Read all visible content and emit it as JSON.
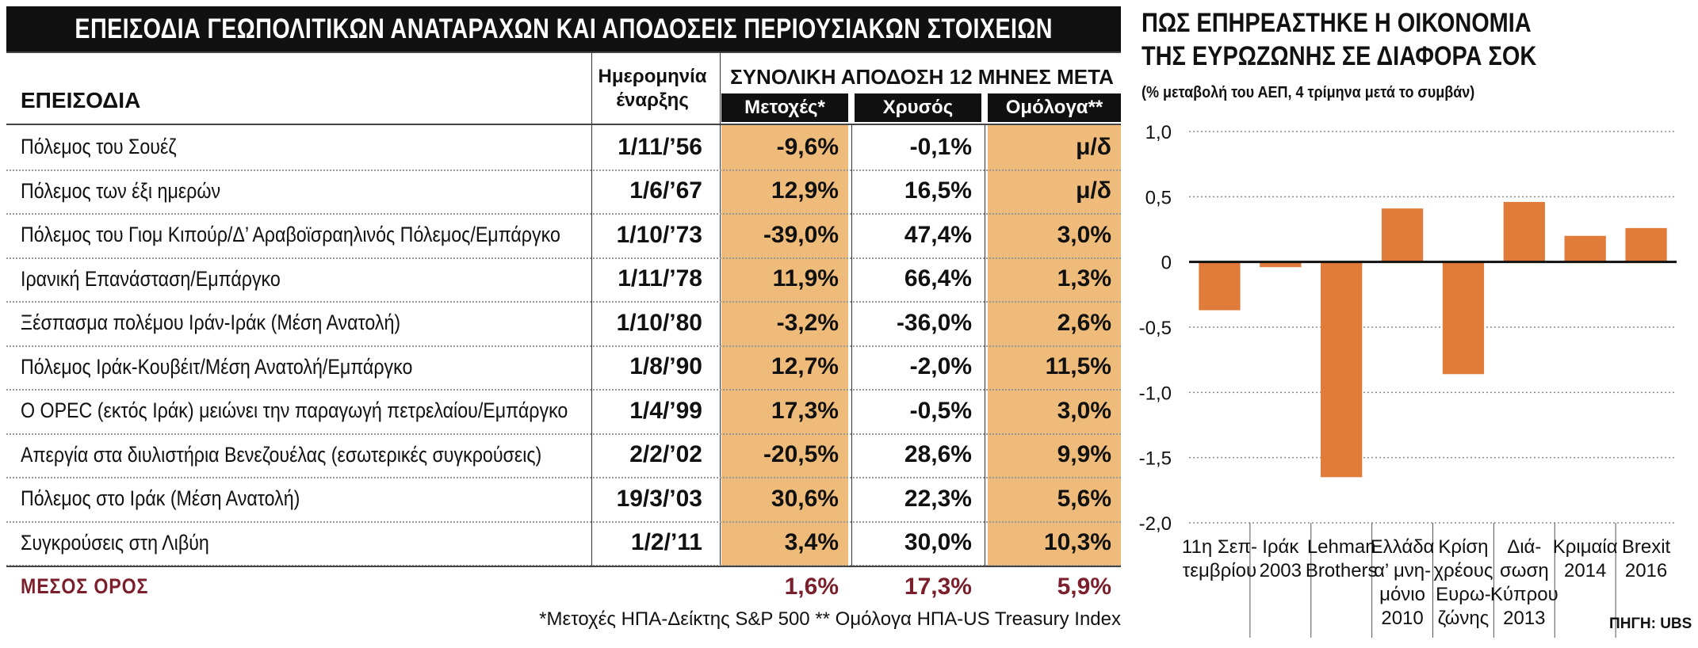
{
  "table": {
    "title": "ΕΠΕΙΣΟΔΙΑ ΓΕΩΠΟΛΙΤΙΚΩΝ ΑΝΑΤΑΡΑΧΩΝ ΚΑΙ ΑΠΟΔΟΣΕΙΣ ΠΕΡΙΟΥΣΙΑΚΩΝ ΣΤΟΙΧΕΙΩΝ",
    "header_episodes": "ΕΠΕΙΣΟΔΙΑ",
    "header_start_line1": "Ημερομηνία",
    "header_start_line2": "έναρξης",
    "header_returns": "ΣΥΝΟΛΙΚΗ ΑΠΟΔΟΣΗ 12 ΜΗΝΕΣ ΜΕΤΑ",
    "col_stocks": "Μετοχές*",
    "col_gold": "Χρυσός",
    "col_bonds": "Ομόλογα**",
    "rows": [
      {
        "episode": "Πόλεμος του Σουέζ",
        "date": "1/11/’56",
        "stocks": "-9,6%",
        "gold": "-0,1%",
        "bonds": "μ/δ"
      },
      {
        "episode": "Πόλεμος των έξι  ημερών",
        "date": "1/6/’67",
        "stocks": "12,9%",
        "gold": "16,5%",
        "bonds": "μ/δ"
      },
      {
        "episode": "Πόλεμος του Γιομ Κιπούρ/Δ’ Αραβοϊσραηλινός Πόλεμος/Εμπάργκο",
        "date": "1/10/’73",
        "stocks": "-39,0%",
        "gold": "47,4%",
        "bonds": "3,0%"
      },
      {
        "episode": "Ιρανική Επανάσταση/Εμπάργκο",
        "date": "1/11/’78",
        "stocks": "11,9%",
        "gold": "66,4%",
        "bonds": "1,3%"
      },
      {
        "episode": "Ξέσπασμα πολέμου Ιράν-Ιράκ (Μέση Ανατολή)",
        "date": "1/10/’80",
        "stocks": "-3,2%",
        "gold": "-36,0%",
        "bonds": "2,6%"
      },
      {
        "episode": "Πόλεμος Ιράκ-Κουβέιτ/Μέση Ανατολή/Εμπάργκο",
        "date": "1/8/’90",
        "stocks": "12,7%",
        "gold": "-2,0%",
        "bonds": "11,5%"
      },
      {
        "episode": "Ο OPEC (εκτός Ιράκ) μειώνει την παραγωγή πετρελαίου/Εμπάργκο",
        "date": "1/4/’99",
        "stocks": "17,3%",
        "gold": "-0,5%",
        "bonds": "3,0%"
      },
      {
        "episode": "Απεργία στα διυλιστήρια Βενεζουέλας (εσωτερικές συγκρούσεις)",
        "date": "2/2/’02",
        "stocks": "-20,5%",
        "gold": "28,6%",
        "bonds": "9,9%"
      },
      {
        "episode": "Πόλεμος στο Ιράκ (Μέση Ανατολή)",
        "date": "19/3/’03",
        "stocks": "30,6%",
        "gold": "22,3%",
        "bonds": "5,6%"
      },
      {
        "episode": "Συγκρούσεις στη Λιβύη",
        "date": "1/2/’11",
        "stocks": "3,4%",
        "gold": "30,0%",
        "bonds": "10,3%"
      }
    ],
    "average": {
      "label": "ΜΕΣΟΣ ΟΡΟΣ",
      "stocks": "1,6%",
      "gold": "17,3%",
      "bonds": "5,9%"
    },
    "footnote": "*Μετοχές ΗΠΑ-Δείκτης S&P 500 ** Ομόλογα ΗΠΑ-US Treasury Index"
  },
  "colors": {
    "bar": "#e07b39",
    "shade": "#efbb7a",
    "average_text": "#7a1f2b",
    "header_bg": "#111111"
  },
  "chart_data": {
    "type": "bar",
    "title_line1": "ΠΩΣ ΕΠΗΡΕΑΣΤΗΚΕ Η ΟΙΚΟΝΟΜΙΑ",
    "title_line2": "ΤΗΣ ΕΥΡΩΖΩΝΗΣ ΣΕ ΔΙΑΦΟΡΑ ΣΟΚ",
    "subtitle": "(% μεταβολή του ΑΕΠ, 4 τρίμηνα μετά το συμβάν)",
    "categories": [
      [
        "11η Σεπ-",
        "τεμβρίου"
      ],
      [
        "Ιράκ",
        "2003"
      ],
      [
        "Lehman",
        "Brothers"
      ],
      [
        "Ελλάδα",
        "α’ μνη-",
        "μόνιο",
        "2010"
      ],
      [
        "Κρίση",
        "χρέους",
        "Ευρω-",
        "ζώνης"
      ],
      [
        "Διά-",
        "σωση",
        "Κύπρου",
        "2013"
      ],
      [
        "Κριμαία",
        "2014"
      ],
      [
        "Brexit",
        "2016"
      ]
    ],
    "values": [
      -0.37,
      -0.04,
      -1.65,
      0.41,
      -0.86,
      0.46,
      0.2,
      0.26
    ],
    "ylim": [
      -2.0,
      1.0
    ],
    "yticks": [
      1.0,
      0.5,
      0,
      -0.5,
      -1.0,
      -1.5,
      -2.0
    ],
    "ytick_labels": [
      "1,0",
      "0,5",
      "0",
      "-0,5",
      "-1,0",
      "-1,5",
      "-2,0"
    ],
    "grid": true,
    "source": "ΠΗΓΗ: UBS"
  }
}
